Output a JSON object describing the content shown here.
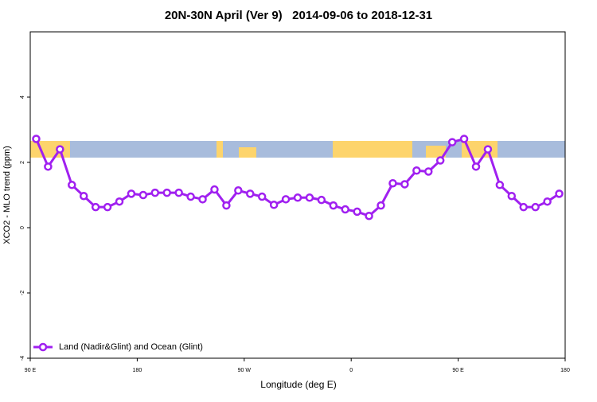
{
  "chart_data": {
    "type": "line",
    "title": "20N-30N April (Ver 9)   2014-09-06 to 2018-12-31",
    "x_label": "Longitude (deg E)",
    "y_label": "XCO2 - MLO trend (ppm)",
    "x": [
      95,
      105,
      115,
      125,
      135,
      145,
      155,
      165,
      175,
      185,
      195,
      205,
      215,
      225,
      235,
      245,
      255,
      265,
      275,
      285,
      295,
      305,
      315,
      325,
      335,
      345,
      355,
      365,
      375,
      385,
      395,
      405,
      415,
      425,
      435,
      445,
      455,
      465,
      475,
      485,
      495,
      505,
      515,
      525,
      535
    ],
    "series": [
      {
        "name": "Land (Nadir&Glint) and Ocean (Glint)",
        "color": "#a020f0",
        "values": [
          2.72,
          1.87,
          2.4,
          1.31,
          0.97,
          0.63,
          0.63,
          0.8,
          1.04,
          1.0,
          1.07,
          1.07,
          1.07,
          0.95,
          0.87,
          1.17,
          0.68,
          1.14,
          1.04,
          0.95,
          0.7,
          0.87,
          0.92,
          0.92,
          0.85,
          0.68,
          0.56,
          0.49,
          0.36,
          0.68,
          1.36,
          1.33,
          1.75,
          1.72,
          2.06,
          2.62,
          2.72,
          1.87,
          2.4,
          1.31,
          0.97,
          0.63,
          0.63,
          0.8,
          1.04
        ]
      }
    ],
    "xlim": [
      90,
      540
    ],
    "xticks": [
      {
        "value": 90,
        "label": "90 E"
      },
      180,
      {
        "value": 270,
        "label": "90 W"
      },
      {
        "value": 360,
        "label": "0"
      },
      {
        "value": 450,
        "label": "90 E"
      },
      {
        "value": 540,
        "label": "180"
      }
    ],
    "ylim": [
      -4,
      6
    ],
    "yticks": [
      -4,
      -2,
      0,
      2,
      4
    ],
    "legend": "bottom-left"
  }
}
